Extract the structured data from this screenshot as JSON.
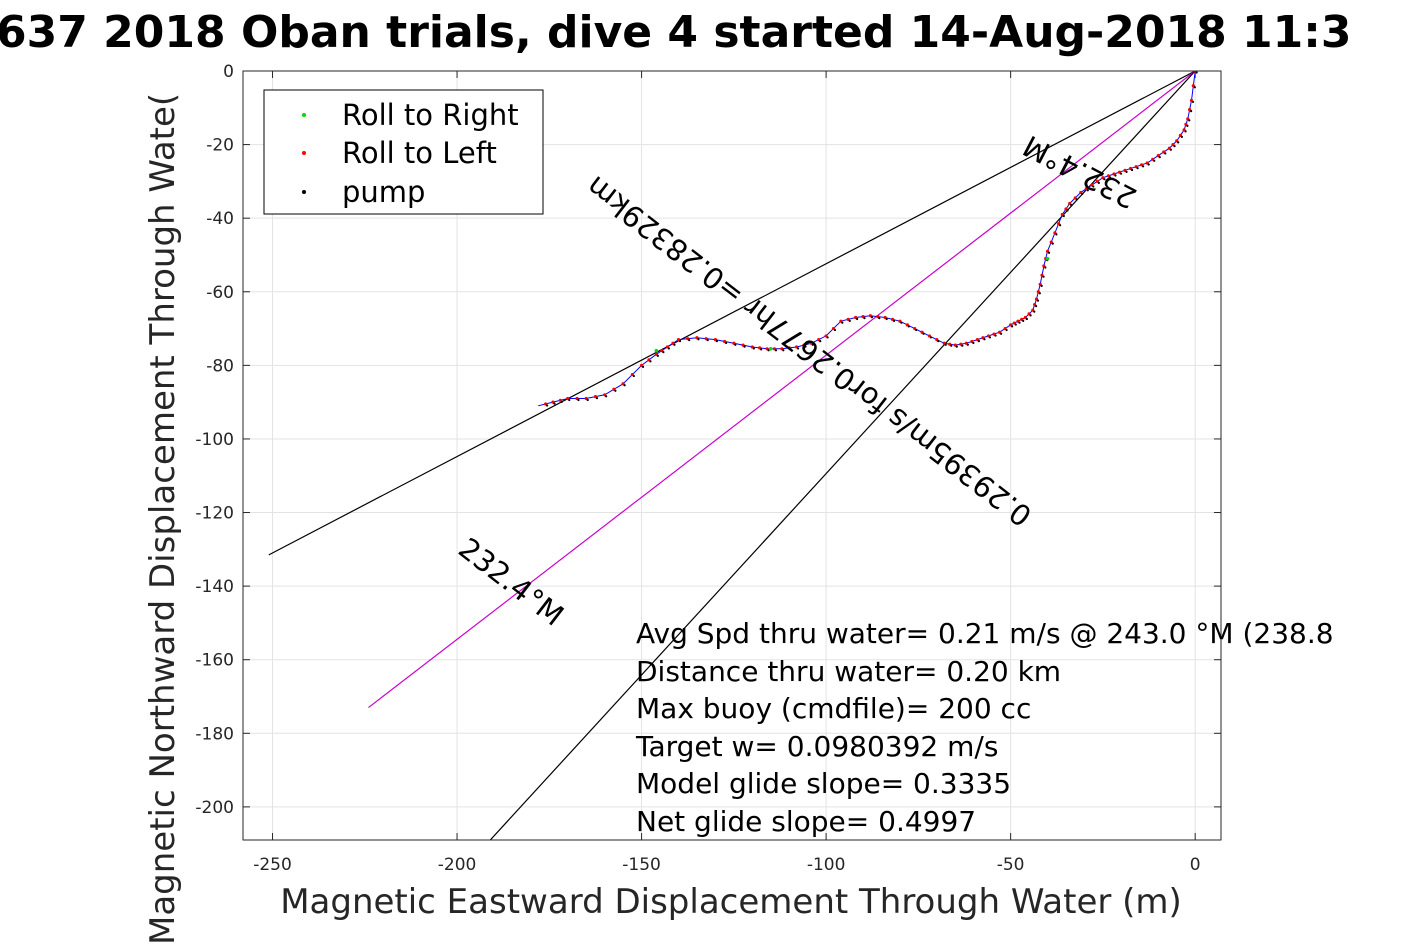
{
  "chart_data": {
    "type": "scatter",
    "title": "637 2018 Oban trials, dive 4 started 14-Aug-2018 11:3",
    "xlabel": "Magnetic Eastward Displacement Through Water (m)",
    "ylabel": "Magnetic Northward Displacement Through Wate(",
    "xlim": [
      -258,
      7
    ],
    "ylim": [
      -209,
      0
    ],
    "xticks": [
      -250,
      -200,
      -150,
      -100,
      -50,
      0
    ],
    "yticks": [
      0,
      -20,
      -40,
      -60,
      -80,
      -100,
      -120,
      -140,
      -160,
      -180,
      -200
    ],
    "grid": true,
    "legend": {
      "placement": "top-left",
      "entries": [
        {
          "label": "Roll to Right",
          "color": "#00dd00"
        },
        {
          "label": "Roll to Left",
          "color": "#ff0000"
        },
        {
          "label": "pump",
          "color": "#000000"
        }
      ]
    },
    "track": {
      "color": "#0000ff",
      "x": [
        0,
        -1,
        -2,
        -3,
        -5,
        -7,
        -10,
        -13,
        -16,
        -19,
        -22,
        -25,
        -28,
        -31,
        -34,
        -36,
        -38,
        -40,
        -41,
        -42,
        -43,
        -44,
        -46,
        -48,
        -50,
        -53,
        -56,
        -59,
        -62,
        -65,
        -68,
        -72,
        -76,
        -80,
        -84,
        -88,
        -92,
        -96,
        -100,
        -104,
        -108,
        -112,
        -116,
        -120,
        -125,
        -130,
        -135,
        -140,
        -143,
        -146,
        -150,
        -155,
        -160,
        -165,
        -170,
        -174,
        -178
      ],
      "y": [
        0,
        -8,
        -13,
        -16,
        -19,
        -21,
        -23,
        -25,
        -26,
        -27,
        -28,
        -29,
        -31,
        -33,
        -36,
        -39,
        -44,
        -49,
        -53,
        -58,
        -62,
        -65,
        -67,
        -68,
        -69,
        -71,
        -72,
        -73,
        -74,
        -74.5,
        -74,
        -72,
        -70,
        -68,
        -67,
        -66.5,
        -67,
        -68,
        -72,
        -74,
        -75,
        -75.5,
        -75.5,
        -75,
        -74,
        -73,
        -72.5,
        -73,
        -75,
        -77,
        -80,
        -85,
        -88,
        -89,
        -89,
        -90,
        -91
      ],
      "roll_right_x": [
        -115,
        -40,
        -146
      ],
      "roll_right_y": [
        -75.5,
        -51,
        -76
      ]
    },
    "reference_lines": [
      {
        "name": "heading-232-upper",
        "color": "#000000",
        "x": [
          0,
          -251
        ],
        "y": [
          0,
          -131.5
        ]
      },
      {
        "name": "heading-232-mid",
        "color": "#cc00cc",
        "x": [
          0,
          -224
        ],
        "y": [
          0,
          -173
        ]
      },
      {
        "name": "heading-232-lower",
        "color": "#000000",
        "x": [
          0,
          -191
        ],
        "y": [
          0,
          -209
        ]
      }
    ],
    "rotated_labels": [
      {
        "text": "232.4°M",
        "x": -30,
        "y": -25,
        "angle_deg": 207.6
      },
      {
        "text": "0.29395m/s for0.2677hr =0.28329km",
        "x": -103,
        "y": -74,
        "angle_deg": 217.6
      },
      {
        "text": "232.4°M",
        "x": -187,
        "y": -141,
        "angle_deg": 37.6
      }
    ],
    "annotations": [
      "Avg Spd thru water=  0.21 m/s @ 243.0 °M (238.8",
      "Distance thru water=  0.20 km",
      "Max buoy (cmdfile)= 200 cc",
      "Target w= 0.0980392 m/s",
      "Model glide slope= 0.3335",
      "Net glide slope= 0.4997"
    ]
  }
}
